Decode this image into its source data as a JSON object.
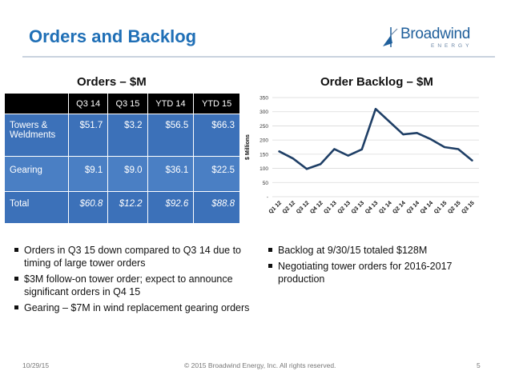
{
  "slide": {
    "title": "Orders and Backlog",
    "date": "10/29/15",
    "copyright": "© 2015 Broadwind Energy, Inc. All rights reserved.",
    "page_number": "5"
  },
  "logo": {
    "name": "Broadwind",
    "sub": "ENERGY"
  },
  "orders_section": {
    "title": "Orders – $M",
    "columns": [
      "",
      "Q3 14",
      "Q3 15",
      "YTD 14",
      "YTD 15"
    ],
    "rows": [
      {
        "label": "Towers & Weldments",
        "values": [
          "$51.7",
          "$3.2",
          "$56.5",
          "$66.3"
        ]
      },
      {
        "label": "Gearing",
        "values": [
          "$9.1",
          "$9.0",
          "$36.1",
          "$22.5"
        ]
      },
      {
        "label": "Total",
        "values": [
          "$60.8",
          "$12.2",
          "$92.6",
          "$88.8"
        ]
      }
    ],
    "bullets": [
      "Orders in Q3 15 down compared to Q3 14 due to timing of large tower orders",
      "$3M follow-on tower order; expect to announce significant orders in Q4 15",
      "Gearing – $7M in wind replacement gearing orders"
    ]
  },
  "backlog_section": {
    "title": "Order Backlog – $M",
    "bullets": [
      "Backlog at 9/30/15 totaled $128M",
      "Negotiating tower orders for 2016-2017 production"
    ]
  },
  "chart_data": {
    "type": "line",
    "title": "Order Backlog – $M",
    "xlabel": "",
    "ylabel": "$ Millions",
    "categories": [
      "Q1 12",
      "Q2 12",
      "Q3 12",
      "Q4 12",
      "Q1 13",
      "Q2 13",
      "Q3 13",
      "Q4 13",
      "Q1 14",
      "Q2 14",
      "Q3 14",
      "Q4 14",
      "Q1 15",
      "Q2 15",
      "Q3 15"
    ],
    "series": [
      {
        "values": [
          160,
          135,
          98,
          115,
          168,
          145,
          167,
          310,
          265,
          220,
          225,
          203,
          175,
          168,
          128
        ],
        "color": "#1f3f66"
      }
    ],
    "ylim": [
      0,
      350
    ],
    "yticks": [
      0,
      50,
      100,
      150,
      200,
      250,
      300,
      350
    ],
    "ytick_labels": [
      "-",
      "50",
      "100",
      "150",
      "200",
      "250",
      "300",
      "350"
    ],
    "grid": true,
    "legend": "none"
  },
  "colors": {
    "title_blue": "#1f6fb6",
    "table_header": "#000000",
    "table_row": "#3c71b9",
    "table_row_alt": "#4a7fc4",
    "line": "#1f3f66",
    "grid": "#d9d9d9"
  }
}
